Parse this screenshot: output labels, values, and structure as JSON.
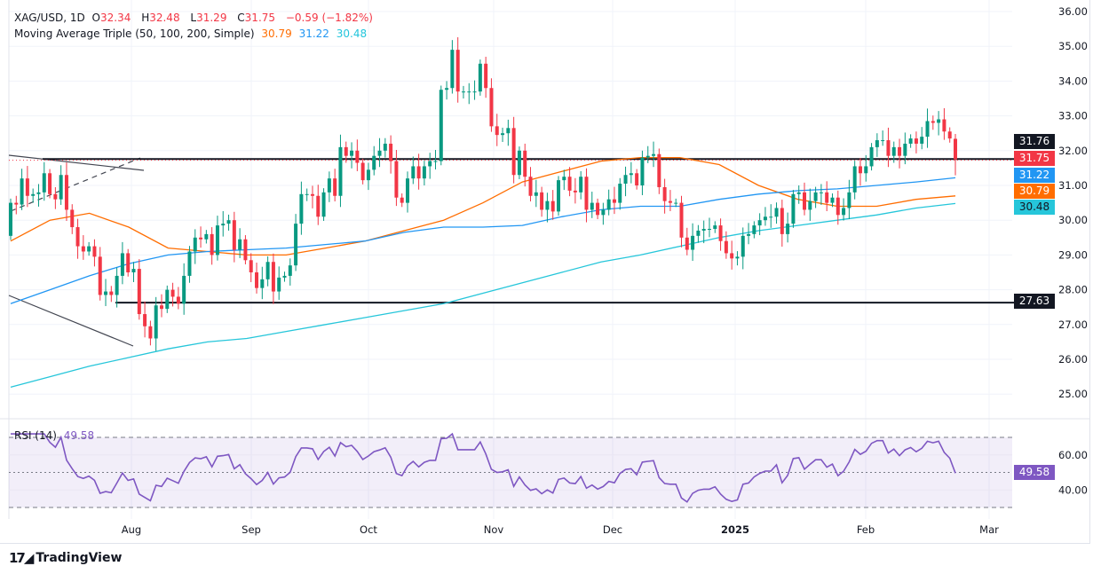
{
  "header": {
    "symbol": "XAG/USD, 1D",
    "o_label": "O",
    "o": "32.34",
    "h_label": "H",
    "h": "32.48",
    "l_label": "L",
    "l": "31.29",
    "c_label": "C",
    "c": "31.75",
    "change": "−0.59 (−1.82%)",
    "ma_title": "Moving Average Triple (50, 100, 200, Simple)",
    "ma50": "30.79",
    "ma100": "31.22",
    "ma200": "30.48"
  },
  "rsi_legend": {
    "title": "RSI (14)",
    "value": "49.58"
  },
  "price_boxes": {
    "resistance": "31.76",
    "last": "31.75",
    "ma100": "31.22",
    "ma50": "30.79",
    "ma200": "30.48",
    "support": "27.63"
  },
  "rsi_axis": {
    "upper": "60.00",
    "lower": "40.00",
    "current": "49.58"
  },
  "footer": {
    "brand": "TradingView"
  },
  "colors": {
    "up": "#089981",
    "down": "#F23645",
    "ma50": "#FF6D00",
    "ma100": "#2196F3",
    "ma200": "#26C6DA",
    "rsi": "#7E57C2"
  },
  "chart_data": {
    "type": "candlestick",
    "title": "XAG/USD, 1D",
    "ylim": [
      24.5,
      36.2
    ],
    "y_ticks": [
      "36.00",
      "35.00",
      "34.00",
      "33.00",
      "32.00",
      "31.00",
      "30.00",
      "29.00",
      "28.00",
      "27.00",
      "26.00",
      "25.00"
    ],
    "x_ticks": [
      "Aug",
      "Sep",
      "Oct",
      "Nov",
      "Dec",
      "2025",
      "Feb",
      "Mar"
    ],
    "grid": true,
    "first_open": 29.55,
    "close": [
      30.5,
      30.45,
      31.2,
      30.7,
      30.75,
      30.8,
      31.35,
      30.75,
      30.6,
      31.3,
      30.3,
      29.8,
      29.25,
      29.1,
      29.25,
      28.95,
      27.85,
      27.95,
      27.85,
      28.4,
      29.05,
      28.5,
      28.6,
      27.3,
      26.95,
      26.6,
      27.55,
      27.45,
      28.0,
      27.8,
      27.6,
      28.4,
      29.1,
      29.5,
      29.45,
      29.6,
      29.0,
      29.85,
      29.9,
      30.0,
      29.15,
      29.45,
      28.85,
      28.5,
      28.05,
      28.3,
      28.8,
      27.95,
      28.35,
      28.4,
      28.7,
      29.9,
      30.75,
      30.75,
      30.7,
      30.1,
      30.8,
      31.2,
      30.7,
      32.1,
      31.85,
      32.0,
      31.65,
      31.15,
      31.45,
      31.85,
      32.0,
      32.2,
      31.7,
      30.65,
      30.5,
      31.2,
      31.55,
      31.2,
      31.55,
      31.7,
      31.7,
      33.75,
      33.8,
      34.9,
      33.7,
      33.7,
      33.7,
      33.7,
      34.5,
      33.8,
      32.7,
      32.45,
      32.5,
      32.65,
      31.3,
      32.0,
      31.25,
      30.7,
      30.8,
      30.3,
      30.55,
      30.25,
      31.15,
      31.25,
      30.85,
      30.8,
      31.25,
      30.3,
      30.5,
      30.15,
      30.3,
      30.6,
      30.5,
      31.05,
      31.3,
      31.35,
      31.0,
      31.8,
      31.85,
      31.9,
      30.95,
      30.55,
      30.5,
      30.5,
      29.5,
      29.15,
      29.55,
      29.7,
      29.75,
      29.75,
      29.85,
      29.4,
      29.05,
      28.9,
      28.95,
      29.55,
      29.6,
      29.85,
      30.0,
      30.1,
      30.1,
      30.35,
      29.6,
      29.9,
      30.75,
      30.8,
      30.3,
      30.55,
      30.8,
      30.8,
      30.5,
      30.65,
      30.15,
      30.35,
      30.8,
      31.55,
      31.35,
      31.55,
      32.1,
      32.3,
      32.3,
      31.85,
      32.1,
      31.85,
      32.2,
      32.35,
      32.2,
      32.4,
      32.85,
      32.8,
      32.9,
      32.55,
      32.35,
      31.75
    ],
    "last_bar": {
      "open": 32.34,
      "high": 32.48,
      "low": 31.29,
      "close": 31.75
    },
    "ma_series": [
      {
        "name": "50",
        "every_10_bars": [
          29.4,
          30.0,
          30.2,
          29.8,
          29.2,
          29.1,
          29.0,
          29.0,
          29.2,
          29.4,
          29.7,
          30.0,
          30.5,
          31.1,
          31.4,
          31.7,
          31.8,
          31.8,
          31.6,
          31.0,
          30.6,
          30.4,
          30.4,
          30.6,
          30.7
        ]
      },
      {
        "name": "100",
        "every_10_bars": [
          27.6,
          28.0,
          28.4,
          28.75,
          29.0,
          29.1,
          29.15,
          29.2,
          29.3,
          29.4,
          29.65,
          29.8,
          29.8,
          29.85,
          30.1,
          30.3,
          30.4,
          30.4,
          30.6,
          30.75,
          30.85,
          30.9,
          31.0,
          31.1,
          31.22
        ]
      },
      {
        "name": "200",
        "every_10_bars": [
          25.2,
          25.5,
          25.8,
          26.05,
          26.3,
          26.5,
          26.6,
          26.8,
          27.0,
          27.2,
          27.4,
          27.6,
          27.9,
          28.2,
          28.5,
          28.8,
          29.0,
          29.25,
          29.5,
          29.7,
          29.85,
          30.0,
          30.15,
          30.35,
          30.48
        ]
      }
    ],
    "horizontal_levels": [
      31.76,
      27.63
    ],
    "rsi": {
      "period": 14,
      "levels": [
        70,
        50,
        30
      ],
      "last": 49.58
    }
  }
}
